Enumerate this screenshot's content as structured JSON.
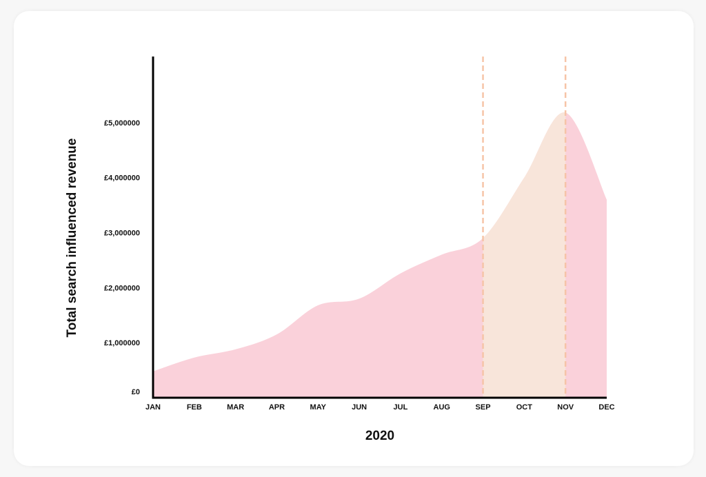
{
  "chart_data": {
    "type": "area",
    "xlabel": "2020",
    "ylabel": "Total search influenced revenue",
    "categories": [
      "JAN",
      "FEB",
      "MAR",
      "APR",
      "MAY",
      "JUN",
      "JUL",
      "AUG",
      "SEP",
      "OCT",
      "NOV",
      "DEC"
    ],
    "y_ticks": [
      {
        "value": 0,
        "label": "£0"
      },
      {
        "value": 1000000,
        "label": "£1,000000"
      },
      {
        "value": 2000000,
        "label": "£2,000000"
      },
      {
        "value": 3000000,
        "label": "£3,000000"
      },
      {
        "value": 4000000,
        "label": "£4,000000"
      },
      {
        "value": 5000000,
        "label": "£5,000000"
      }
    ],
    "ylim": [
      0,
      6200000
    ],
    "series": [
      {
        "values": [
          480000,
          730000,
          880000,
          1150000,
          1680000,
          1800000,
          2260000,
          2600000,
          2900000,
          4000000,
          5180000,
          3600000
        ]
      }
    ],
    "highlight_range": {
      "from": "SEP",
      "to": "NOV"
    },
    "colors": {
      "area": "#fad1da",
      "highlight": "#f8e5da",
      "marker_line": "#f6c4a7",
      "axis": "#000000"
    }
  }
}
